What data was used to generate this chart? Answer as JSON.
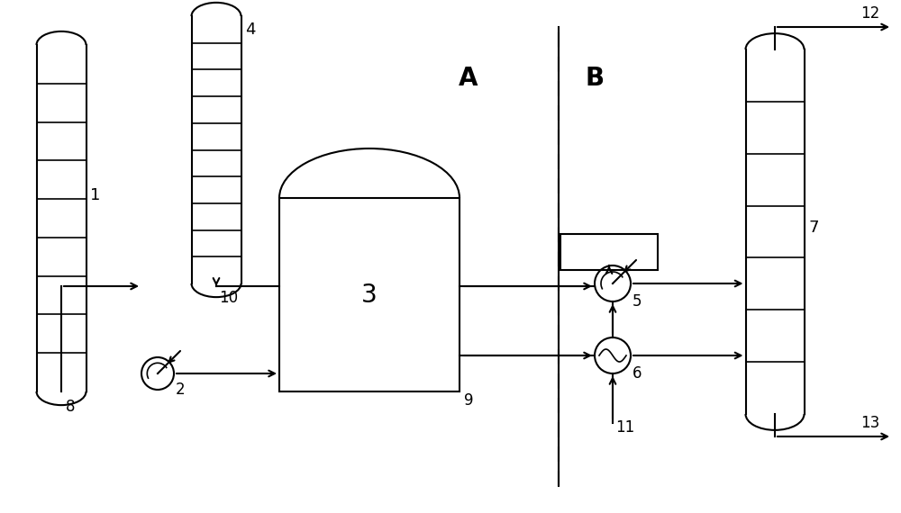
{
  "bg_color": "#ffffff",
  "line_color": "#000000",
  "label_A": "A",
  "label_B": "B",
  "fig_width": 10.0,
  "fig_height": 5.7
}
